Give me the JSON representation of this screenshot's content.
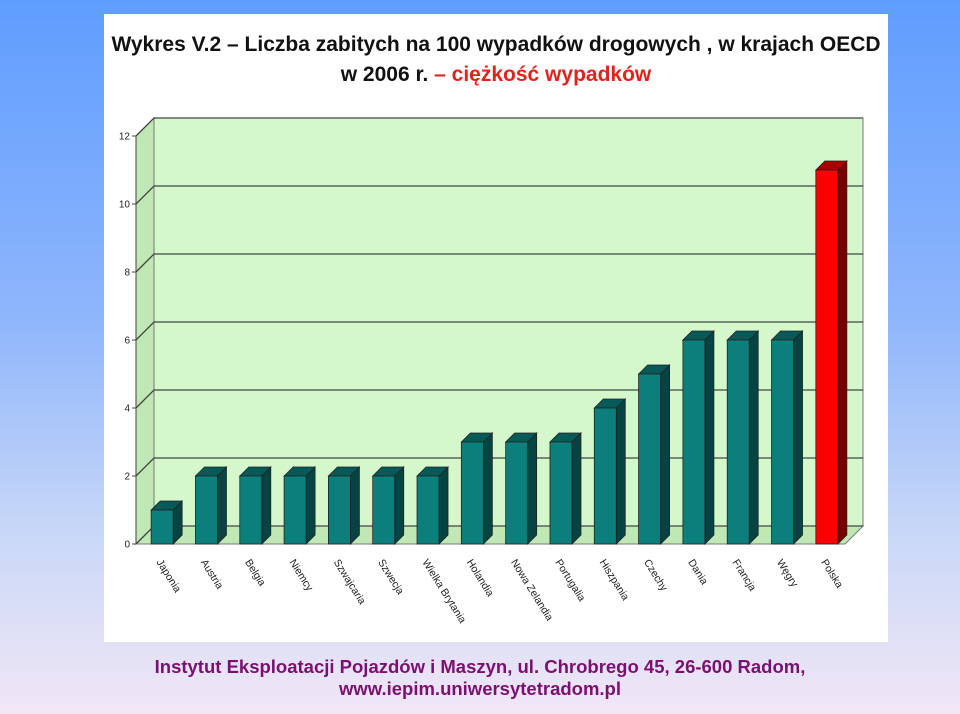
{
  "chart_data": {
    "type": "bar",
    "title": "Wykres V.2 – Liczba zabitych na 100 wypadków drogowych , w krajach OECD",
    "title_line2": "w 2006 r.",
    "subtitle": " – ciężkość wypadków",
    "categories": [
      "Japonia",
      "Austria",
      "Belgia",
      "Niemcy",
      "Szwajcaria",
      "Szwecja",
      "Wielka Brytania",
      "Holandia",
      "Nowa Zelandia",
      "Portugalia",
      "Hiszpania",
      "Czechy",
      "Dania",
      "Francja",
      "Węgry",
      "Polska"
    ],
    "values": [
      1,
      2,
      2,
      2,
      2,
      2,
      2,
      3,
      3,
      3,
      4,
      5,
      6,
      6,
      6,
      11
    ],
    "highlight_category": "Polska",
    "ylim": [
      0,
      12
    ],
    "yticks": [
      "0",
      "2",
      "4",
      "6",
      "8",
      "10",
      "12"
    ],
    "grid": true,
    "xlabel": "",
    "ylabel": "",
    "colors": {
      "bar": "#0b7f7b",
      "bar_top": "#075a57",
      "bar_side": "#054442",
      "highlight": "#ff0000",
      "highlight_top": "#a80000",
      "highlight_side": "#7a0000",
      "plot_bg": "#d4f8cc",
      "grid": "#444444"
    }
  },
  "footer": {
    "line1": "Instytut Eksploatacji Pojazdów i Maszyn, ul. Chrobrego 45, 26-600 Radom,",
    "line2": "www.iepim.uniwersytetradom.pl"
  }
}
